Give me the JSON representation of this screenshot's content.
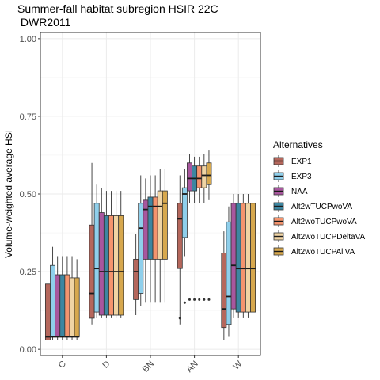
{
  "chart_data": {
    "type": "box",
    "title_line1": "Summer-fall habitat subregion HSIR 22C",
    "title_line2": " DWR2011",
    "xlabel": "",
    "ylabel": "Volume-weighted average HSI",
    "ylim": [
      -0.02,
      1.02
    ],
    "yticks": [
      "0.00",
      "0.25",
      "0.50",
      "0.75",
      "1.00"
    ],
    "ytick_values": [
      0,
      0.25,
      0.5,
      0.75,
      1.0
    ],
    "grid": true,
    "legend_position": "right",
    "legend_title": "Alternatives",
    "categories": [
      "C",
      "D",
      "BN",
      "AN",
      "W"
    ],
    "series": [
      {
        "name": "EXP1",
        "color": "#B5675C",
        "boxes": [
          [
            0.02,
            0.03,
            0.04,
            0.21,
            0.29
          ],
          [
            0.08,
            0.1,
            0.18,
            0.4,
            0.6
          ],
          [
            0.11,
            0.16,
            0.25,
            0.29,
            0.37
          ],
          [
            0.08,
            0.26,
            0.42,
            0.47,
            0.56
          ],
          [
            0.03,
            0.07,
            0.13,
            0.31,
            0.38
          ]
        ],
        "outliers": [
          [],
          [],
          [],
          [
            0.1
          ],
          []
        ]
      },
      {
        "name": "EXP3",
        "color": "#8FCFEB",
        "boxes": [
          [
            0.03,
            0.04,
            0.04,
            0.27,
            0.33
          ],
          [
            0.1,
            0.12,
            0.26,
            0.47,
            0.53
          ],
          [
            0.14,
            0.18,
            0.39,
            0.47,
            0.56
          ],
          [
            0.3,
            0.36,
            0.5,
            0.52,
            0.58
          ],
          [
            0.04,
            0.08,
            0.17,
            0.41,
            0.46
          ]
        ],
        "outliers": [
          [],
          [],
          [],
          [
            0.15
          ],
          []
        ]
      },
      {
        "name": "NAA",
        "color": "#A8579E",
        "boxes": [
          [
            0.03,
            0.04,
            0.04,
            0.24,
            0.3
          ],
          [
            0.1,
            0.11,
            0.25,
            0.44,
            0.52
          ],
          [
            0.15,
            0.29,
            0.45,
            0.48,
            0.55
          ],
          [
            0.47,
            0.51,
            0.55,
            0.6,
            0.63
          ],
          [
            0.1,
            0.13,
            0.27,
            0.47,
            0.5
          ]
        ],
        "outliers": [
          [],
          [],
          [],
          [
            0.16
          ],
          []
        ]
      },
      {
        "name": "Alt2wTUCPwoVA",
        "color": "#3D86A1",
        "boxes": [
          [
            0.03,
            0.04,
            0.04,
            0.24,
            0.3
          ],
          [
            0.1,
            0.11,
            0.25,
            0.43,
            0.51
          ],
          [
            0.15,
            0.29,
            0.46,
            0.49,
            0.56
          ],
          [
            0.47,
            0.51,
            0.55,
            0.59,
            0.62
          ],
          [
            0.1,
            0.12,
            0.26,
            0.47,
            0.5
          ]
        ],
        "outliers": [
          [],
          [],
          [],
          [
            0.16
          ],
          []
        ]
      },
      {
        "name": "Alt2woTUCPwoVA",
        "color": "#F4946E",
        "boxes": [
          [
            0.03,
            0.04,
            0.04,
            0.24,
            0.3
          ],
          [
            0.1,
            0.11,
            0.25,
            0.43,
            0.51
          ],
          [
            0.15,
            0.29,
            0.46,
            0.49,
            0.56
          ],
          [
            0.47,
            0.52,
            0.55,
            0.59,
            0.62
          ],
          [
            0.1,
            0.12,
            0.26,
            0.47,
            0.5
          ]
        ],
        "outliers": [
          [],
          [],
          [],
          [
            0.16
          ],
          []
        ]
      },
      {
        "name": "Alt2woTUCPDeltaVA",
        "color": "#F0D4A4",
        "boxes": [
          [
            0.03,
            0.04,
            0.04,
            0.23,
            0.3
          ],
          [
            0.1,
            0.11,
            0.25,
            0.43,
            0.51
          ],
          [
            0.15,
            0.29,
            0.46,
            0.51,
            0.58
          ],
          [
            0.47,
            0.52,
            0.56,
            0.59,
            0.63
          ],
          [
            0.1,
            0.12,
            0.26,
            0.47,
            0.5
          ]
        ],
        "outliers": [
          [],
          [],
          [],
          [
            0.16
          ],
          []
        ]
      },
      {
        "name": "Alt2woTUCPAllVA",
        "color": "#D7A84E",
        "boxes": [
          [
            0.03,
            0.04,
            0.04,
            0.23,
            0.29
          ],
          [
            0.1,
            0.11,
            0.25,
            0.43,
            0.51
          ],
          [
            0.15,
            0.29,
            0.47,
            0.51,
            0.58
          ],
          [
            0.48,
            0.53,
            0.56,
            0.6,
            0.64
          ],
          [
            0.11,
            0.12,
            0.26,
            0.47,
            0.5
          ]
        ],
        "outliers": [
          [],
          [],
          [],
          [
            0.16
          ],
          []
        ]
      }
    ]
  }
}
